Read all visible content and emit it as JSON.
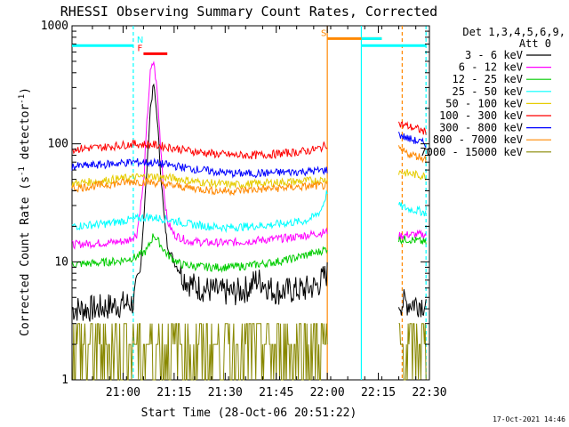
{
  "chart_data": {
    "type": "line",
    "title": "RHESSI Observing Summary Count Rates, Corrected",
    "xlabel": "Start Time (28-Oct-06 20:51:22)",
    "ylabel": "Corrected Count Rate (s",
    "ylabel_sup1": "-1",
    "ylabel_mid": " detector",
    "ylabel_sup2": "-1",
    "ylabel_end": ")",
    "yscale": "log",
    "ylim": [
      1,
      1000
    ],
    "xlim_minutes": [
      -6,
      99
    ],
    "x_ticks": [
      {
        "label": "21:00",
        "min": 9
      },
      {
        "label": "21:15",
        "min": 24
      },
      {
        "label": "21:30",
        "min": 39
      },
      {
        "label": "21:45",
        "min": 54
      },
      {
        "label": "22:00",
        "min": 69
      },
      {
        "label": "22:15",
        "min": 84
      },
      {
        "label": "22:30",
        "min": 99
      }
    ],
    "y_ticks": [
      {
        "label": "1",
        "v": 1
      },
      {
        "label": "10",
        "v": 10
      },
      {
        "label": "100",
        "v": 100
      },
      {
        "label": "1000",
        "v": 1000
      }
    ],
    "legend": {
      "header1": "Det 1,3,4,5,6,9,",
      "header2": "Att 0",
      "position": "right"
    },
    "series": [
      {
        "name": "3 - 6 keV",
        "color": "#000000",
        "points": [
          [
            -6,
            4
          ],
          [
            1,
            4
          ],
          [
            7,
            4.3
          ],
          [
            12,
            4.5
          ],
          [
            14,
            8
          ],
          [
            16,
            60
          ],
          [
            17,
            200
          ],
          [
            18,
            320
          ],
          [
            19,
            170
          ],
          [
            20,
            60
          ],
          [
            21,
            25
          ],
          [
            22,
            14
          ],
          [
            24,
            10
          ],
          [
            26,
            8
          ],
          [
            28,
            6.8
          ],
          [
            30,
            6.2
          ],
          [
            34,
            5.8
          ],
          [
            38,
            5.5
          ],
          [
            42,
            5.5
          ],
          [
            46,
            6
          ],
          [
            48,
            7
          ],
          [
            50,
            6.8
          ],
          [
            52,
            6
          ],
          [
            54,
            5.6
          ],
          [
            58,
            5.7
          ],
          [
            62,
            5.8
          ],
          [
            66,
            6.3
          ],
          [
            69,
            8
          ]
        ],
        "points2": [
          [
            90,
            4.5
          ],
          [
            93,
            4.5
          ],
          [
            96,
            4.5
          ],
          [
            98,
            4.4
          ]
        ]
      },
      {
        "name": "6 - 12 keV",
        "color": "#ff00ff",
        "points": [
          [
            -6,
            14
          ],
          [
            4,
            14.5
          ],
          [
            10,
            15
          ],
          [
            13,
            17
          ],
          [
            15,
            45
          ],
          [
            16,
            150
          ],
          [
            17,
            400
          ],
          [
            18,
            500
          ],
          [
            19,
            280
          ],
          [
            20,
            100
          ],
          [
            21,
            40
          ],
          [
            22,
            22
          ],
          [
            24,
            17
          ],
          [
            28,
            15
          ],
          [
            34,
            14.5
          ],
          [
            40,
            14.5
          ],
          [
            46,
            15
          ],
          [
            52,
            15.5
          ],
          [
            58,
            16
          ],
          [
            64,
            17
          ],
          [
            69,
            18
          ]
        ],
        "points2": [
          [
            90,
            16.5
          ],
          [
            93,
            17
          ],
          [
            96,
            17
          ],
          [
            98,
            17
          ]
        ]
      },
      {
        "name": "12 - 25 keV",
        "color": "#00cc00",
        "points": [
          [
            -6,
            9.5
          ],
          [
            2,
            9.8
          ],
          [
            8,
            10.2
          ],
          [
            13,
            11
          ],
          [
            16,
            12.5
          ],
          [
            18,
            17
          ],
          [
            20,
            14
          ],
          [
            22,
            11.5
          ],
          [
            26,
            9.5
          ],
          [
            30,
            9.2
          ],
          [
            34,
            9
          ],
          [
            40,
            9
          ],
          [
            46,
            9.3
          ],
          [
            52,
            9.8
          ],
          [
            58,
            10.5
          ],
          [
            63,
            11.5
          ],
          [
            66,
            12
          ],
          [
            69,
            13
          ]
        ],
        "points2": [
          [
            90,
            15.5
          ],
          [
            93,
            15.5
          ],
          [
            96,
            15
          ],
          [
            98,
            14.5
          ]
        ]
      },
      {
        "name": "25 - 50 keV",
        "color": "#00ffff",
        "points": [
          [
            -6,
            20
          ],
          [
            4,
            21
          ],
          [
            10,
            22.5
          ],
          [
            16,
            24
          ],
          [
            22,
            23
          ],
          [
            28,
            21
          ],
          [
            34,
            20
          ],
          [
            40,
            19.5
          ],
          [
            46,
            20
          ],
          [
            52,
            20.5
          ],
          [
            58,
            21.5
          ],
          [
            62,
            22
          ],
          [
            65,
            24
          ],
          [
            67,
            27
          ],
          [
            68,
            32
          ],
          [
            69,
            40
          ]
        ],
        "points2": [
          [
            90,
            30
          ],
          [
            93,
            28
          ],
          [
            96,
            27
          ],
          [
            98,
            26
          ]
        ]
      },
      {
        "name": "50 - 100 keV",
        "color": "#e6cc00",
        "points": [
          [
            -6,
            46
          ],
          [
            4,
            49
          ],
          [
            12,
            52
          ],
          [
            18,
            53
          ],
          [
            24,
            51
          ],
          [
            30,
            48
          ],
          [
            36,
            46
          ],
          [
            42,
            45
          ],
          [
            48,
            46
          ],
          [
            54,
            47
          ],
          [
            60,
            48
          ],
          [
            66,
            49
          ],
          [
            69,
            50
          ]
        ],
        "points2": [
          [
            90,
            58
          ],
          [
            93,
            56
          ],
          [
            96,
            54
          ],
          [
            98,
            53
          ]
        ]
      },
      {
        "name": "100 - 300 keV",
        "color": "#ff0000",
        "points": [
          [
            -6,
            90
          ],
          [
            4,
            94
          ],
          [
            12,
            100
          ],
          [
            18,
            98
          ],
          [
            24,
            92
          ],
          [
            30,
            86
          ],
          [
            36,
            82
          ],
          [
            42,
            80
          ],
          [
            48,
            80
          ],
          [
            54,
            82
          ],
          [
            60,
            85
          ],
          [
            64,
            88
          ],
          [
            67,
            92
          ],
          [
            69,
            100
          ]
        ],
        "points2": [
          [
            90,
            148
          ],
          [
            93,
            140
          ],
          [
            96,
            132
          ],
          [
            98,
            125
          ]
        ]
      },
      {
        "name": "300 - 800 keV",
        "color": "#0000ff",
        "points": [
          [
            -6,
            64
          ],
          [
            4,
            67
          ],
          [
            12,
            70
          ],
          [
            18,
            69
          ],
          [
            24,
            65
          ],
          [
            30,
            61
          ],
          [
            36,
            58
          ],
          [
            42,
            56
          ],
          [
            48,
            56
          ],
          [
            54,
            57
          ],
          [
            60,
            58
          ],
          [
            66,
            59
          ],
          [
            69,
            60
          ]
        ],
        "points2": [
          [
            90,
            120
          ],
          [
            93,
            110
          ],
          [
            96,
            104
          ],
          [
            98,
            100
          ]
        ]
      },
      {
        "name": "800 - 7000 keV",
        "color": "#ff8800",
        "points": [
          [
            -6,
            42
          ],
          [
            4,
            45
          ],
          [
            12,
            48
          ],
          [
            18,
            47
          ],
          [
            24,
            44
          ],
          [
            30,
            42
          ],
          [
            36,
            40
          ],
          [
            42,
            40
          ],
          [
            48,
            41
          ],
          [
            54,
            42
          ],
          [
            60,
            43
          ],
          [
            66,
            44
          ],
          [
            69,
            44
          ]
        ],
        "points2": [
          [
            90,
            90
          ],
          [
            93,
            82
          ],
          [
            96,
            78
          ],
          [
            98,
            74
          ]
        ]
      },
      {
        "name": "7000 - 15000 keV",
        "color": "#888800",
        "points": [
          [
            -6,
            2
          ],
          [
            69,
            2
          ]
        ],
        "points2": [
          [
            90,
            2
          ],
          [
            98,
            2
          ]
        ]
      }
    ],
    "flags": [
      {
        "label": "",
        "color": "#00ffff",
        "y_value": 680,
        "from": -6,
        "to": 12
      },
      {
        "label": "",
        "color": "#00ffff",
        "y_value": 680,
        "from": 79,
        "to": 98
      },
      {
        "label": "N",
        "color": "#00ffff",
        "label_min": 14,
        "y_value": 680
      },
      {
        "label": "F",
        "color": "#ff0000",
        "y_value": 580,
        "from": 15,
        "to": 22
      },
      {
        "label": "S",
        "color": "#ff8800",
        "y_value": 780,
        "from": 69,
        "to": 85
      },
      {
        "label": "",
        "color": "#00ffff",
        "y_value": 780,
        "from": 79,
        "to": 85
      }
    ],
    "vlines": [
      {
        "min": 12,
        "color": "#00ffff",
        "dashed": true
      },
      {
        "min": 69,
        "color": "#ff8800",
        "dashed": false
      },
      {
        "min": 79,
        "color": "#00ffff",
        "dashed": false
      },
      {
        "min": 91,
        "color": "#ff8800",
        "dashed": true
      },
      {
        "min": 98,
        "color": "#00ffff",
        "dashed": true
      }
    ]
  },
  "timestamp": "17-Oct-2021 14:46"
}
